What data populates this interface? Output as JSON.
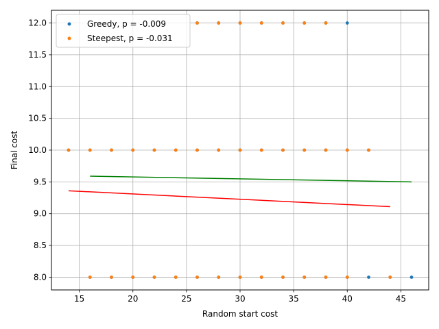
{
  "chart_data": {
    "type": "scatter",
    "xlabel": "Random start cost",
    "ylabel": "Final cost",
    "xlim": [
      12.4,
      47.6
    ],
    "ylim": [
      7.8,
      12.2
    ],
    "x_ticks": [
      15,
      20,
      25,
      30,
      35,
      40,
      45
    ],
    "y_ticks": [
      8.0,
      8.5,
      9.0,
      9.5,
      10.0,
      10.5,
      11.0,
      11.5,
      12.0
    ],
    "x_tick_labels": [
      "15",
      "20",
      "25",
      "30",
      "35",
      "40",
      "45"
    ],
    "y_tick_labels": [
      "8.0",
      "8.5",
      "9.0",
      "9.5",
      "10.0",
      "10.5",
      "11.0",
      "11.5",
      "12.0"
    ],
    "grid": true,
    "legend_position": "top-left",
    "series": [
      {
        "name": "Greedy, p = -0.009",
        "color": "#1f77b4",
        "points": [
          [
            26,
            12
          ],
          [
            28,
            12
          ],
          [
            30,
            12
          ],
          [
            32,
            12
          ],
          [
            34,
            12
          ],
          [
            36,
            12
          ],
          [
            38,
            12
          ],
          [
            40,
            12
          ],
          [
            14,
            10
          ],
          [
            16,
            10
          ],
          [
            18,
            10
          ],
          [
            20,
            10
          ],
          [
            22,
            10
          ],
          [
            24,
            10
          ],
          [
            26,
            10
          ],
          [
            28,
            10
          ],
          [
            30,
            10
          ],
          [
            32,
            10
          ],
          [
            34,
            10
          ],
          [
            36,
            10
          ],
          [
            38,
            10
          ],
          [
            40,
            10
          ],
          [
            42,
            10
          ],
          [
            16,
            8
          ],
          [
            18,
            8
          ],
          [
            20,
            8
          ],
          [
            22,
            8
          ],
          [
            24,
            8
          ],
          [
            26,
            8
          ],
          [
            28,
            8
          ],
          [
            30,
            8
          ],
          [
            32,
            8
          ],
          [
            34,
            8
          ],
          [
            36,
            8
          ],
          [
            38,
            8
          ],
          [
            40,
            8
          ],
          [
            42,
            8
          ],
          [
            44,
            8
          ],
          [
            46,
            8
          ]
        ],
        "trend": {
          "color": "#008000",
          "x": [
            16,
            46
          ],
          "y": [
            9.59,
            9.5
          ]
        }
      },
      {
        "name": "Steepest, p = -0.031",
        "color": "#ff7f0e",
        "points": [
          [
            26,
            12
          ],
          [
            28,
            12
          ],
          [
            30,
            12
          ],
          [
            32,
            12
          ],
          [
            34,
            12
          ],
          [
            36,
            12
          ],
          [
            38,
            12
          ],
          [
            14,
            10
          ],
          [
            16,
            10
          ],
          [
            18,
            10
          ],
          [
            20,
            10
          ],
          [
            22,
            10
          ],
          [
            24,
            10
          ],
          [
            26,
            10
          ],
          [
            28,
            10
          ],
          [
            30,
            10
          ],
          [
            32,
            10
          ],
          [
            34,
            10
          ],
          [
            36,
            10
          ],
          [
            38,
            10
          ],
          [
            40,
            10
          ],
          [
            42,
            10
          ],
          [
            16,
            8
          ],
          [
            18,
            8
          ],
          [
            20,
            8
          ],
          [
            22,
            8
          ],
          [
            24,
            8
          ],
          [
            26,
            8
          ],
          [
            28,
            8
          ],
          [
            30,
            8
          ],
          [
            32,
            8
          ],
          [
            34,
            8
          ],
          [
            36,
            8
          ],
          [
            38,
            8
          ],
          [
            40,
            8
          ],
          [
            44,
            8
          ]
        ],
        "trend": {
          "color": "#ff0000",
          "x": [
            14,
            44
          ],
          "y": [
            9.36,
            9.11
          ]
        }
      }
    ]
  }
}
